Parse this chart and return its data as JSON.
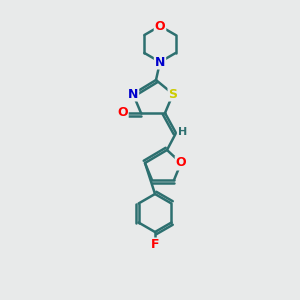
{
  "bg_color": "#e8eaea",
  "bond_color": "#2d7070",
  "atom_colors": {
    "O": "#ff0000",
    "N": "#0000cc",
    "S": "#cccc00",
    "F": "#ff0000",
    "C": "#2d7070",
    "H": "#2d7070"
  },
  "line_width": 1.8,
  "font_size": 9,
  "xlim": [
    0,
    10
  ],
  "ylim": [
    0,
    15
  ]
}
